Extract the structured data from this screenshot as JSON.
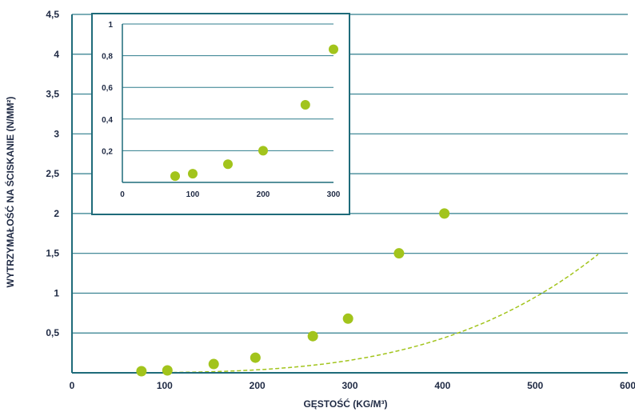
{
  "chart_data": [
    {
      "type": "scatter",
      "xlabel": "GĘSTOŚĆ (KG/M³)",
      "ylabel": "WYTRZYMAŁOŚĆ NA ŚCISKANIE (N/MM²)",
      "xlim": [
        0,
        600
      ],
      "ylim": [
        0,
        4.5
      ],
      "x_ticks": [
        0,
        100,
        200,
        300,
        400,
        500,
        600
      ],
      "y_ticks": [
        0.5,
        1,
        1.5,
        2,
        2.5,
        3,
        3.5,
        4,
        4.5
      ],
      "x_tick_labels": [
        "0",
        "100",
        "200",
        "300",
        "400",
        "500",
        "600"
      ],
      "y_tick_labels": [
        "0,5",
        "1",
        "1,5",
        "2",
        "2,5",
        "3",
        "3,5",
        "4",
        "4,5"
      ],
      "grid": true,
      "series": [
        {
          "x": [
            75,
            103,
            153,
            198,
            260,
            298,
            353,
            402
          ],
          "y": [
            0.02,
            0.03,
            0.11,
            0.19,
            0.46,
            0.68,
            1.5,
            2.0
          ],
          "color": "#a2c41c"
        }
      ],
      "trendlines": [
        {
          "style": "dashed",
          "color": "#a2c41c",
          "x": [
            40,
            505
          ],
          "coef": [
            3e-14,
            2.2
          ]
        },
        {
          "style": "dashed",
          "color": "#a2c41c",
          "x": [
            40,
            570
          ],
          "coef": [
            3e-10,
            3.52
          ]
        }
      ]
    },
    {
      "type": "scatter",
      "xlim": [
        0,
        300
      ],
      "ylim": [
        0,
        1
      ],
      "x_ticks": [
        0,
        100,
        200,
        300
      ],
      "y_ticks": [
        0.2,
        0.4,
        0.6,
        0.8,
        1
      ],
      "x_tick_labels": [
        "0",
        "100",
        "200",
        "300"
      ],
      "y_tick_labels": [
        "0,2",
        "0,4",
        "0,6",
        "0,8",
        "1"
      ],
      "grid": true,
      "series": [
        {
          "x": [
            75,
            100,
            150,
            200,
            260,
            300
          ],
          "y": [
            0.04,
            0.055,
            0.115,
            0.2,
            0.49,
            0.84
          ],
          "color": "#a2c41c"
        }
      ]
    }
  ],
  "colors": {
    "grid": "#2e7d8c",
    "axis": "#1f6b7a",
    "text": "#1f2a44",
    "marker": "#a2c41c"
  }
}
